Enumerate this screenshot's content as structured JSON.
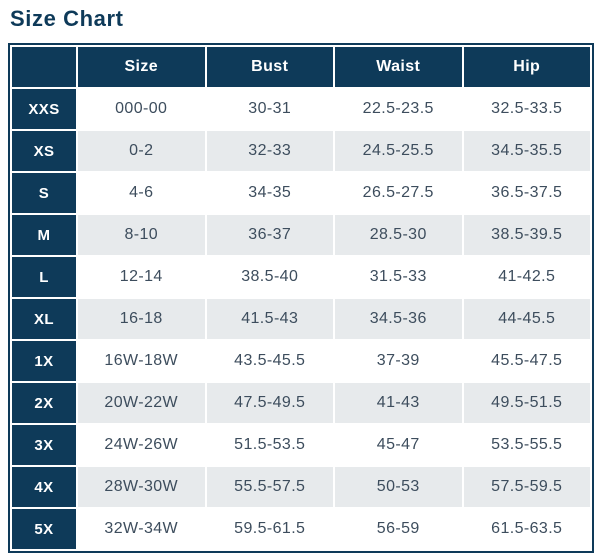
{
  "page_title": "Size Chart",
  "colors": {
    "navy": "#0e3a59",
    "alt_row": "#e7eaec",
    "cell_text": "#3d4d5d",
    "header_text": "#ffffff"
  },
  "table": {
    "columns": [
      "Size",
      "Bust",
      "Waist",
      "Hip"
    ],
    "rows": [
      {
        "label": "XXS",
        "size": "000-00",
        "bust": "30-31",
        "waist": "22.5-23.5",
        "hip": "32.5-33.5"
      },
      {
        "label": "XS",
        "size": "0-2",
        "bust": "32-33",
        "waist": "24.5-25.5",
        "hip": "34.5-35.5"
      },
      {
        "label": "S",
        "size": "4-6",
        "bust": "34-35",
        "waist": "26.5-27.5",
        "hip": "36.5-37.5"
      },
      {
        "label": "M",
        "size": "8-10",
        "bust": "36-37",
        "waist": "28.5-30",
        "hip": "38.5-39.5"
      },
      {
        "label": "L",
        "size": "12-14",
        "bust": "38.5-40",
        "waist": "31.5-33",
        "hip": "41-42.5"
      },
      {
        "label": "XL",
        "size": "16-18",
        "bust": "41.5-43",
        "waist": "34.5-36",
        "hip": "44-45.5"
      },
      {
        "label": "1X",
        "size": "16W-18W",
        "bust": "43.5-45.5",
        "waist": "37-39",
        "hip": "45.5-47.5"
      },
      {
        "label": "2X",
        "size": "20W-22W",
        "bust": "47.5-49.5",
        "waist": "41-43",
        "hip": "49.5-51.5"
      },
      {
        "label": "3X",
        "size": "24W-26W",
        "bust": "51.5-53.5",
        "waist": "45-47",
        "hip": "53.5-55.5"
      },
      {
        "label": "4X",
        "size": "28W-30W",
        "bust": "55.5-57.5",
        "waist": "50-53",
        "hip": "57.5-59.5"
      },
      {
        "label": "5X",
        "size": "32W-34W",
        "bust": "59.5-61.5",
        "waist": "56-59",
        "hip": "61.5-63.5"
      }
    ]
  },
  "chart_data": {
    "type": "table",
    "title": "Size Chart",
    "columns": [
      "",
      "Size",
      "Bust",
      "Waist",
      "Hip"
    ],
    "rows": [
      [
        "XXS",
        "000-00",
        "30-31",
        "22.5-23.5",
        "32.5-33.5"
      ],
      [
        "XS",
        "0-2",
        "32-33",
        "24.5-25.5",
        "34.5-35.5"
      ],
      [
        "S",
        "4-6",
        "34-35",
        "26.5-27.5",
        "36.5-37.5"
      ],
      [
        "M",
        "8-10",
        "36-37",
        "28.5-30",
        "38.5-39.5"
      ],
      [
        "L",
        "12-14",
        "38.5-40",
        "31.5-33",
        "41-42.5"
      ],
      [
        "XL",
        "16-18",
        "41.5-43",
        "34.5-36",
        "44-45.5"
      ],
      [
        "1X",
        "16W-18W",
        "43.5-45.5",
        "37-39",
        "45.5-47.5"
      ],
      [
        "2X",
        "20W-22W",
        "47.5-49.5",
        "41-43",
        "49.5-51.5"
      ],
      [
        "3X",
        "24W-26W",
        "51.5-53.5",
        "45-47",
        "53.5-55.5"
      ],
      [
        "4X",
        "28W-30W",
        "55.5-57.5",
        "50-53",
        "57.5-59.5"
      ],
      [
        "5X",
        "32W-34W",
        "59.5-61.5",
        "56-59",
        "61.5-63.5"
      ]
    ]
  }
}
